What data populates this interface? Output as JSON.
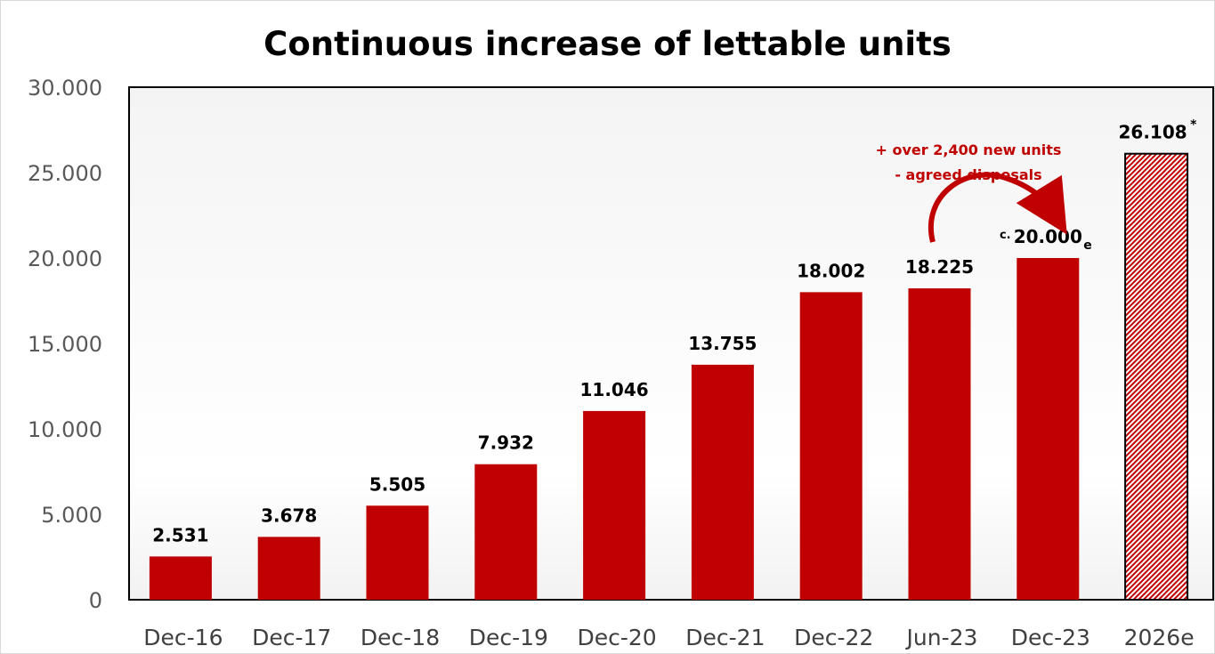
{
  "chart_data": {
    "type": "bar",
    "title": "Continuous increase of lettable units",
    "categories": [
      "Dec-16",
      "Dec-17",
      "Dec-18",
      "Dec-19",
      "Dec-20",
      "Dec-21",
      "Dec-22",
      "Jun-23",
      "Dec-23",
      "2026e"
    ],
    "values": [
      2531,
      3678,
      5505,
      7932,
      11046,
      13755,
      18002,
      18225,
      20000,
      26108
    ],
    "value_labels": [
      "2.531",
      "3.678",
      "5.505",
      "7.932",
      "11.046",
      "13.755",
      "18.002",
      "18.225",
      "20.000",
      "26.108"
    ],
    "value_label_prefix_dec23": "c.",
    "value_label_suffix_dec23": "e",
    "value_label_suffix_2026e": "*",
    "ylim": [
      0,
      30000
    ],
    "yticks": [
      0,
      5000,
      10000,
      15000,
      20000,
      25000,
      30000
    ],
    "ytick_labels": [
      "0",
      "5.000",
      "10.000",
      "15.000",
      "20.000",
      "25.000",
      "30.000"
    ],
    "xlabel": "",
    "ylabel": "",
    "grid": false,
    "legend": "none",
    "bar_color": "#c00000",
    "hatched_category": "2026e",
    "annotation_lines": [
      "+ over 2,400 new units",
      "- agreed disposals"
    ],
    "annotation_color": "#c00000"
  }
}
